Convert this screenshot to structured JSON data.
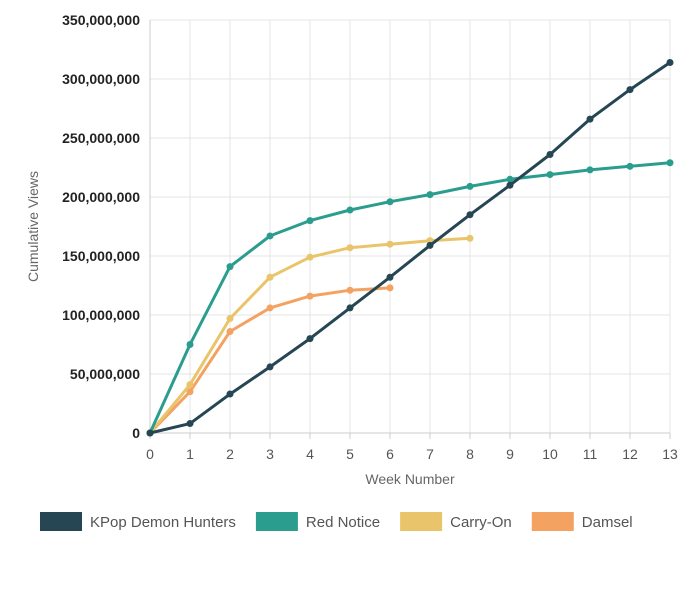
{
  "chart_data": {
    "type": "line",
    "xlabel": "Week Number",
    "ylabel": "Cumulative Views",
    "xlim": [
      0,
      13
    ],
    "ylim": [
      0,
      350000000
    ],
    "x_ticks": [
      "0",
      "1",
      "2",
      "3",
      "4",
      "5",
      "6",
      "7",
      "8",
      "9",
      "10",
      "11",
      "12",
      "13"
    ],
    "y_ticks": [
      "0",
      "50,000,000",
      "100,000,000",
      "150,000,000",
      "200,000,000",
      "250,000,000",
      "300,000,000",
      "350,000,000"
    ],
    "grid": true,
    "legend_position": "bottom-left",
    "series": [
      {
        "name": "KPop Demon Hunters",
        "color": "#264653",
        "points": [
          [
            0,
            0
          ],
          [
            1,
            8000000
          ],
          [
            2,
            33000000
          ],
          [
            3,
            56000000
          ],
          [
            4,
            80000000
          ],
          [
            5,
            106000000
          ],
          [
            6,
            132000000
          ],
          [
            7,
            159000000
          ],
          [
            8,
            185000000
          ],
          [
            9,
            210000000
          ],
          [
            10,
            236000000
          ],
          [
            11,
            266000000
          ],
          [
            12,
            291000000
          ],
          [
            13,
            314000000
          ]
        ]
      },
      {
        "name": "Red Notice",
        "color": "#2a9d8f",
        "points": [
          [
            0,
            0
          ],
          [
            1,
            75000000
          ],
          [
            2,
            141000000
          ],
          [
            3,
            167000000
          ],
          [
            4,
            180000000
          ],
          [
            5,
            189000000
          ],
          [
            6,
            196000000
          ],
          [
            7,
            202000000
          ],
          [
            8,
            209000000
          ],
          [
            9,
            215000000
          ],
          [
            10,
            219000000
          ],
          [
            11,
            223000000
          ],
          [
            12,
            226000000
          ],
          [
            13,
            229000000
          ]
        ]
      },
      {
        "name": "Carry-On",
        "color": "#e9c46a",
        "points": [
          [
            0,
            0
          ],
          [
            1,
            41000000
          ],
          [
            2,
            97000000
          ],
          [
            3,
            132000000
          ],
          [
            4,
            149000000
          ],
          [
            5,
            157000000
          ],
          [
            6,
            160000000
          ],
          [
            7,
            163000000
          ],
          [
            8,
            165000000
          ]
        ]
      },
      {
        "name": "Damsel",
        "color": "#f4a261",
        "points": [
          [
            0,
            0
          ],
          [
            1,
            35000000
          ],
          [
            2,
            86000000
          ],
          [
            3,
            106000000
          ],
          [
            4,
            116000000
          ],
          [
            5,
            121000000
          ],
          [
            6,
            123000000
          ]
        ]
      }
    ]
  }
}
